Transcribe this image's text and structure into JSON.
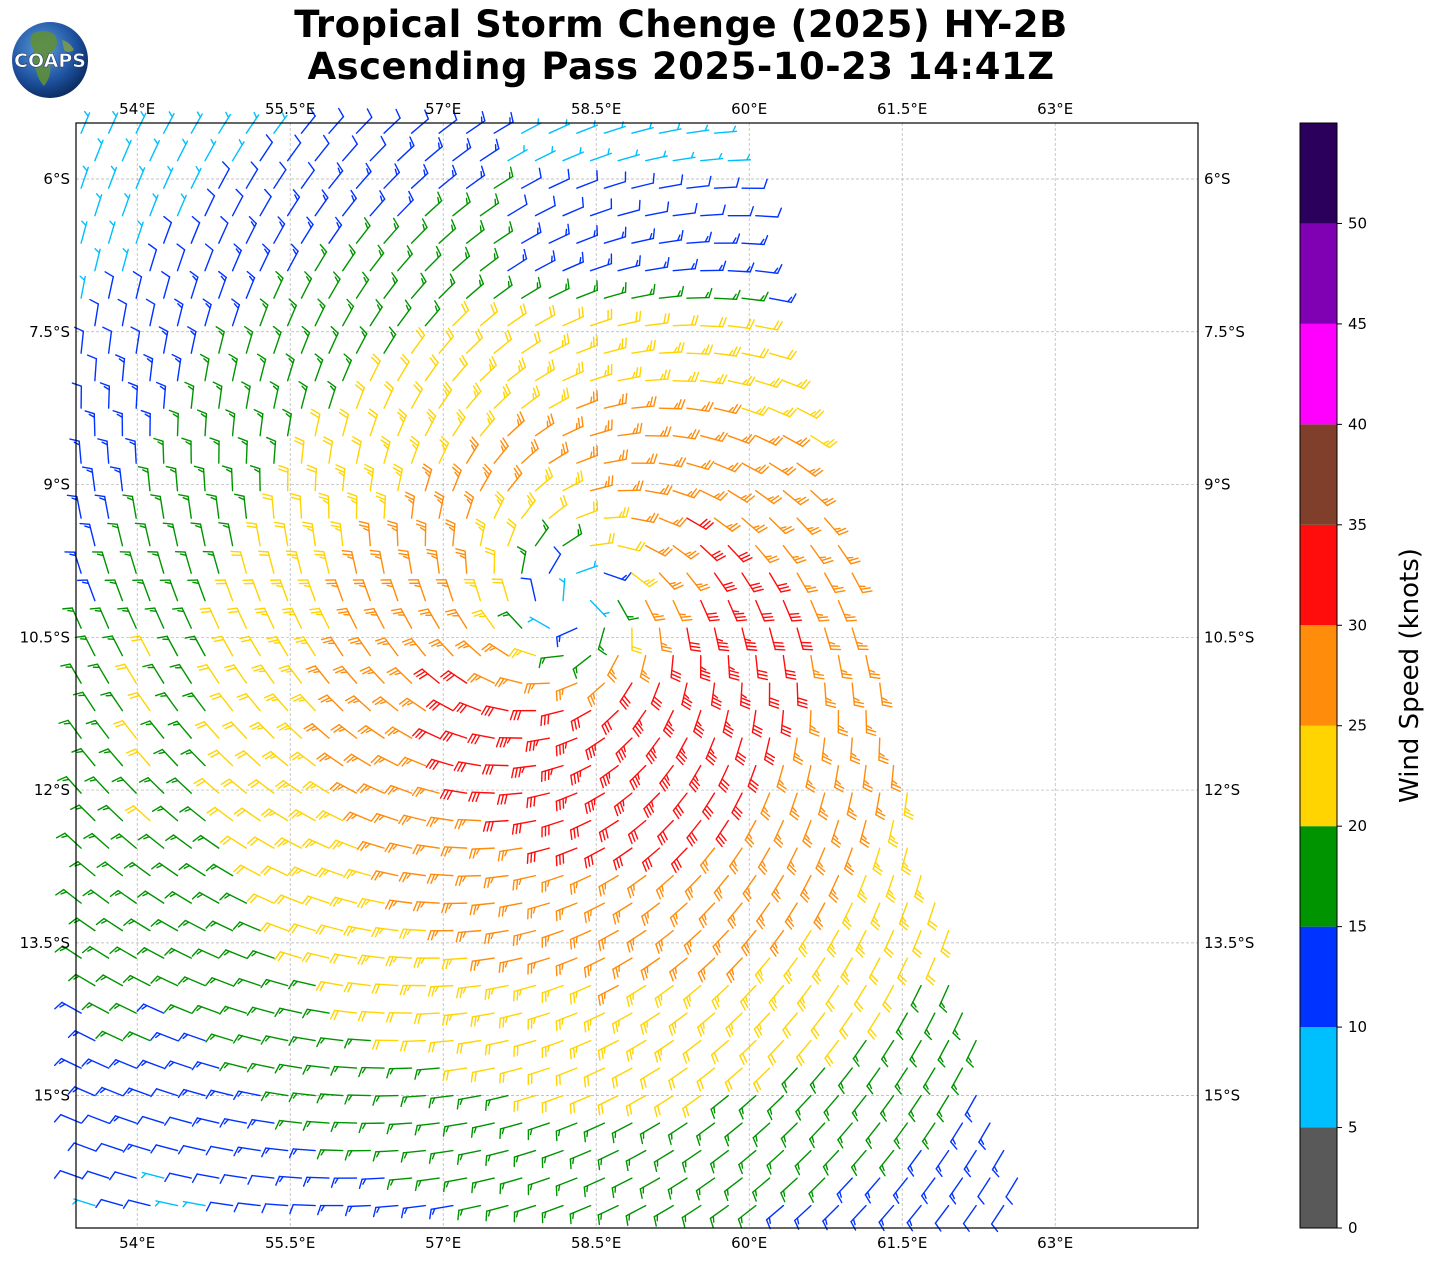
{
  "title": {
    "line1": "Tropical Storm Chenge (2025) HY-2B",
    "line2": "Ascending Pass 2025-10-23 14:41Z"
  },
  "logo": {
    "text": "COAPS",
    "icon": "globe-logo-icon"
  },
  "map": {
    "lon_range": [
      53.4,
      64.4
    ],
    "lat_range": [
      -16.3,
      -5.45
    ],
    "lon_ticks": [
      "54°E",
      "55.5°E",
      "57°E",
      "58.5°E",
      "60°E",
      "61.5°E",
      "63°E"
    ],
    "lon_tick_values": [
      54,
      55.5,
      57,
      58.5,
      60,
      61.5,
      63
    ],
    "lat_ticks": [
      "6°S",
      "7.5°S",
      "9°S",
      "10.5°S",
      "12°S",
      "13.5°S",
      "15°S"
    ],
    "lat_tick_values": [
      -6,
      -7.5,
      -9,
      -10.5,
      -12,
      -13.5,
      -15
    ],
    "gridlines": true,
    "storm_center": {
      "lon": 58.3,
      "lat": -10.2
    },
    "swath_east_edge": [
      [
        59.9,
        -5.45
      ],
      [
        60.3,
        -7.5
      ],
      [
        61.2,
        -10.5
      ],
      [
        62.0,
        -13.5
      ],
      [
        62.8,
        -16.3
      ]
    ]
  },
  "colorbar": {
    "label": "Wind Speed (knots)",
    "tick_labels": [
      "0",
      "5",
      "10",
      "15",
      "20",
      "25",
      "30",
      "35",
      "40",
      "45",
      "50"
    ],
    "bins": [
      {
        "min": 0,
        "max": 5,
        "color": "#595959"
      },
      {
        "min": 5,
        "max": 10,
        "color": "#00bfff"
      },
      {
        "min": 10,
        "max": 15,
        "color": "#0033ff"
      },
      {
        "min": 15,
        "max": 20,
        "color": "#009400"
      },
      {
        "min": 20,
        "max": 25,
        "color": "#ffd400"
      },
      {
        "min": 25,
        "max": 30,
        "color": "#ff8c0a"
      },
      {
        "min": 30,
        "max": 35,
        "color": "#ff0d0d"
      },
      {
        "min": 35,
        "max": 40,
        "color": "#7f3f2a"
      },
      {
        "min": 40,
        "max": 45,
        "color": "#ff00ff"
      },
      {
        "min": 45,
        "max": 50,
        "color": "#8000b4"
      },
      {
        "min": 50,
        "max": 55,
        "color": "#2b005c"
      }
    ]
  }
}
